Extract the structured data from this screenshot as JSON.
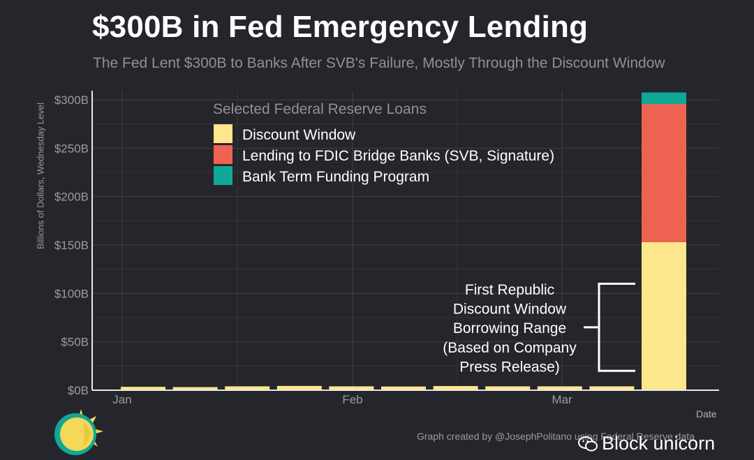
{
  "title": "$300B in Fed Emergency Lending",
  "subtitle": "The Fed Lent $300B to Banks After SVB's Failure, Mostly Through the Discount Window",
  "credit": "Graph created by @JosephPolitano using Federal Reserve data",
  "watermark": "Block unicorn",
  "chart_data": {
    "type": "bar",
    "stacked": true,
    "title": "$300B in Fed Emergency Lending",
    "subtitle": "The Fed Lent $300B to Banks After SVB's Failure, Mostly Through the Discount Window",
    "xlabel": "Date",
    "ylabel": "Billions of Dollars, Wednesday Level",
    "ylim": [
      0,
      300
    ],
    "y_ticks": [
      0,
      50,
      100,
      150,
      200,
      250,
      300
    ],
    "y_tick_labels": [
      "$0B",
      "$50B",
      "$100B",
      "$150B",
      "$200B",
      "$250B",
      "$300B"
    ],
    "x_tick_labels": [
      "Jan",
      "Feb",
      "Mar"
    ],
    "grid": true,
    "legend_title": "Selected Federal Reserve Loans",
    "legend_position": "top-center",
    "categories": [
      "Jan 4",
      "Jan 11",
      "Jan 18",
      "Jan 25",
      "Feb 1",
      "Feb 8",
      "Feb 15",
      "Feb 22",
      "Mar 1",
      "Mar 8",
      "Mar 15"
    ],
    "series": [
      {
        "name": "Discount Window",
        "color": "#fde68b",
        "values": [
          3.5,
          3.2,
          4.0,
          4.4,
          4.0,
          3.8,
          4.3,
          4.0,
          4.0,
          4.0,
          152.9
        ]
      },
      {
        "name": "Lending to FDIC Bridge Banks (SVB, Signature)",
        "color": "#ee6252",
        "values": [
          0,
          0,
          0,
          0,
          0,
          0,
          0,
          0,
          0,
          0,
          142.8
        ]
      },
      {
        "name": "Bank Term Funding Program",
        "color": "#0fa897",
        "values": [
          0,
          0,
          0,
          0,
          0,
          0,
          0,
          0,
          0,
          0,
          11.9
        ]
      }
    ],
    "annotation": {
      "text": [
        "First Republic",
        "Discount Window",
        "Borrowing Range",
        "(Based on Company",
        "Press Release)"
      ],
      "range": [
        20,
        110
      ]
    }
  }
}
